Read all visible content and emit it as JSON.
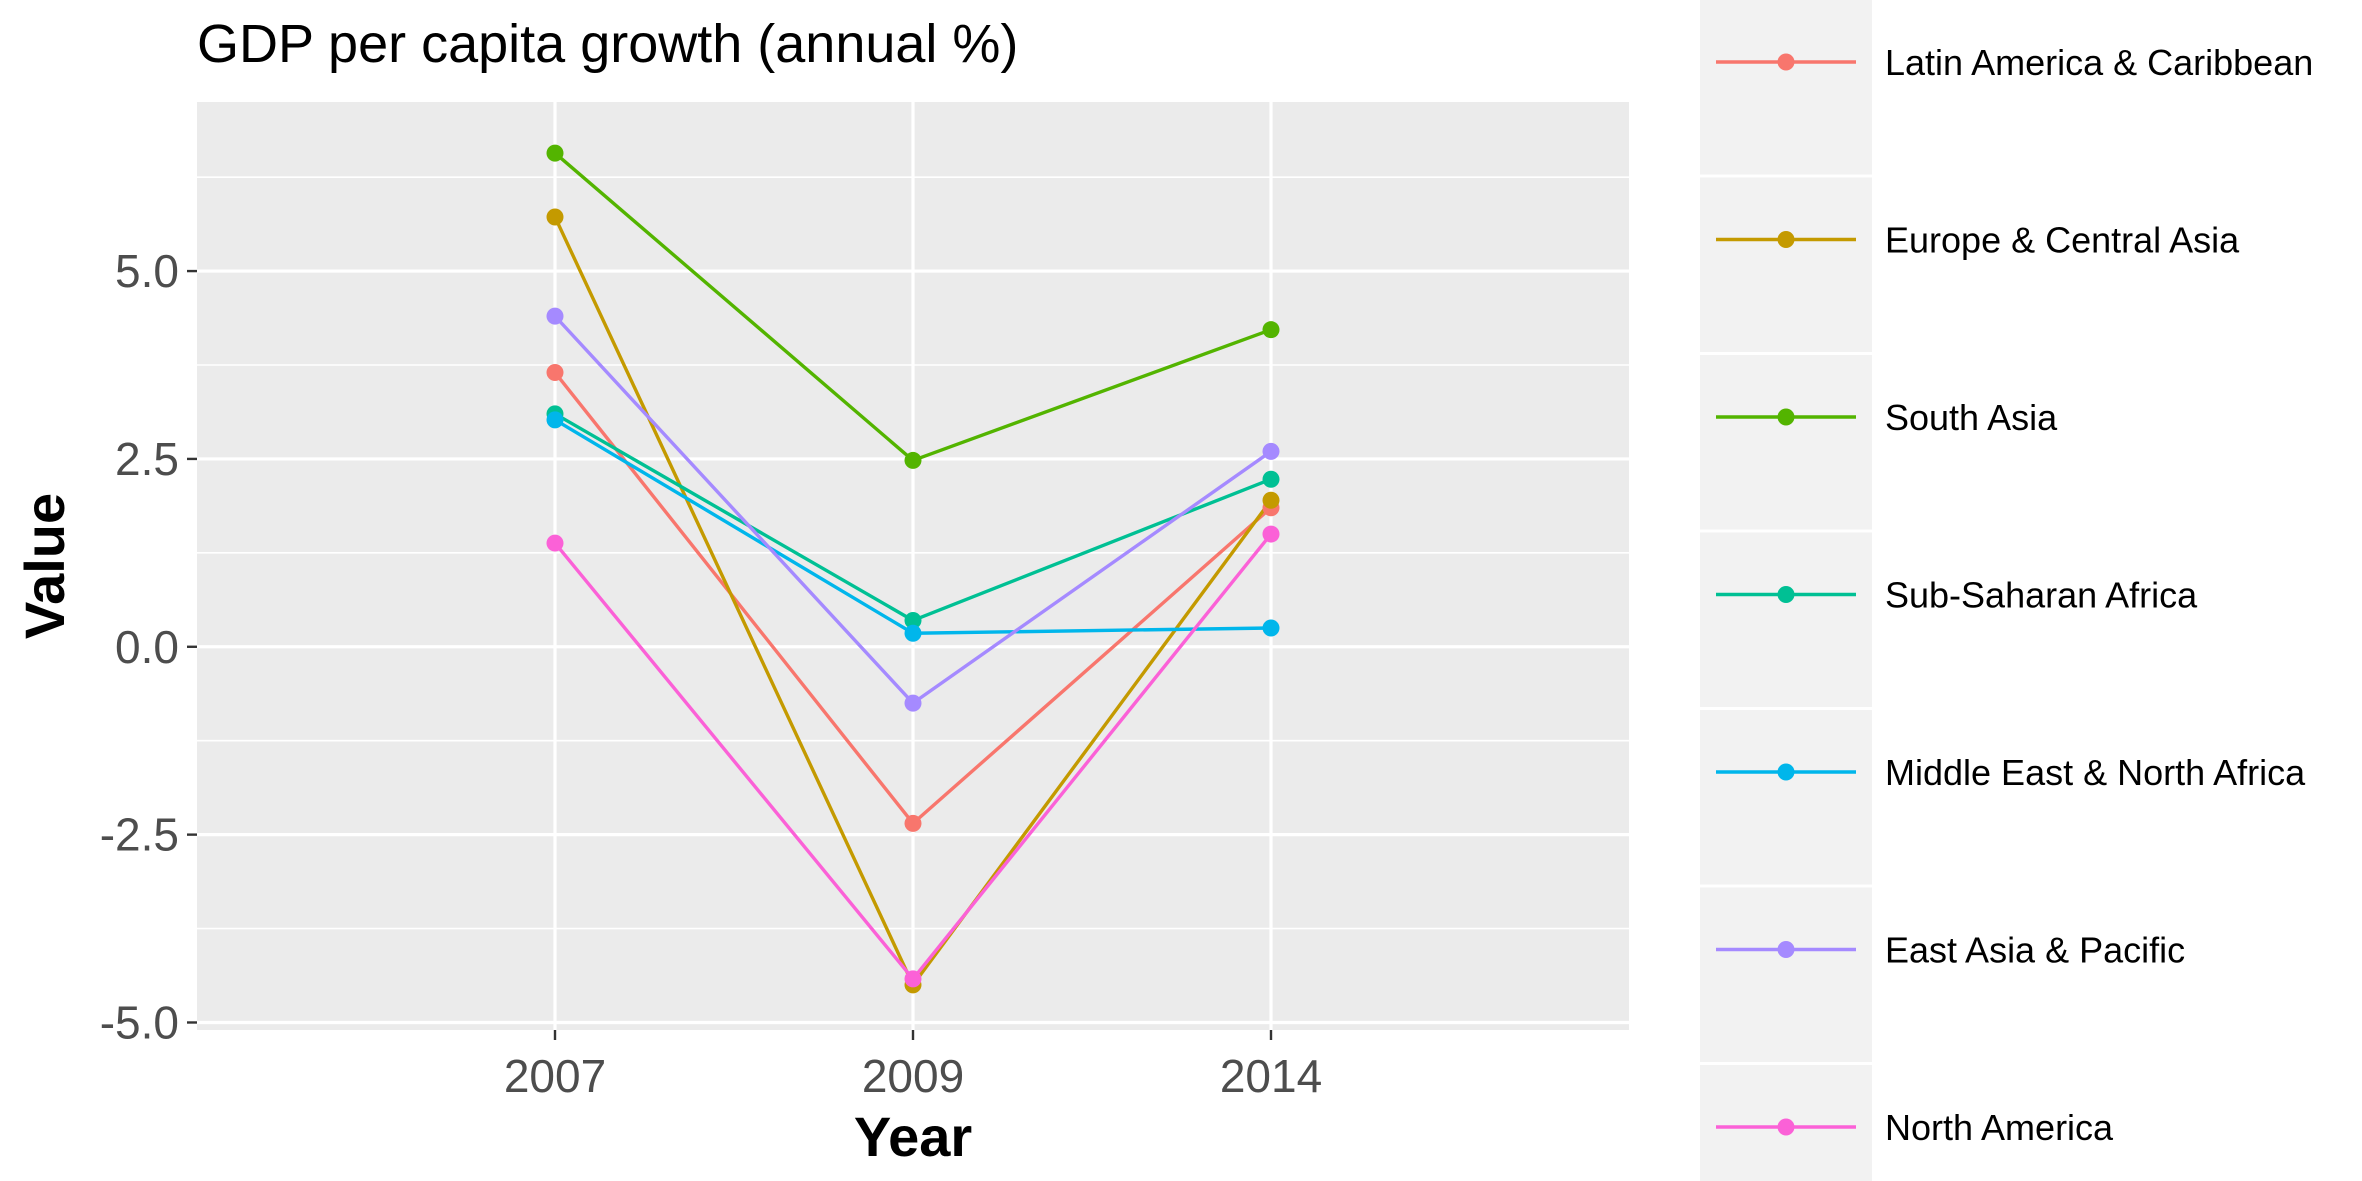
{
  "chart_data": {
    "type": "line",
    "title": "GDP per capita growth (annual %)",
    "xlabel": "Year",
    "ylabel": "Value",
    "categories": [
      "2007",
      "2009",
      "2014"
    ],
    "y_ticks": [
      -5.0,
      -2.5,
      0.0,
      2.5,
      5.0
    ],
    "y_tick_labels": [
      "-5.0",
      "-2.5",
      "0.0",
      "2.5",
      "5.0"
    ],
    "ylim": [
      -5.1,
      7.25
    ],
    "grid": true,
    "legend_position": "right",
    "series": [
      {
        "name": "Latin America & Caribbean",
        "color": "#F8766D",
        "values": [
          3.65,
          -2.35,
          1.85
        ]
      },
      {
        "name": "Europe & Central Asia",
        "color": "#C49A00",
        "values": [
          5.72,
          -4.5,
          1.95
        ]
      },
      {
        "name": "South Asia",
        "color": "#53B400",
        "values": [
          6.57,
          2.48,
          4.22
        ]
      },
      {
        "name": "Sub-Saharan Africa",
        "color": "#00C094",
        "values": [
          3.1,
          0.35,
          2.23
        ]
      },
      {
        "name": "Middle East & North Africa",
        "color": "#00B6EB",
        "values": [
          3.02,
          0.18,
          0.25
        ]
      },
      {
        "name": "East Asia & Pacific",
        "color": "#A58AFF",
        "values": [
          4.4,
          -0.75,
          2.6
        ]
      },
      {
        "name": "North America",
        "color": "#FB61D7",
        "values": [
          1.38,
          -4.42,
          1.5
        ]
      }
    ]
  }
}
